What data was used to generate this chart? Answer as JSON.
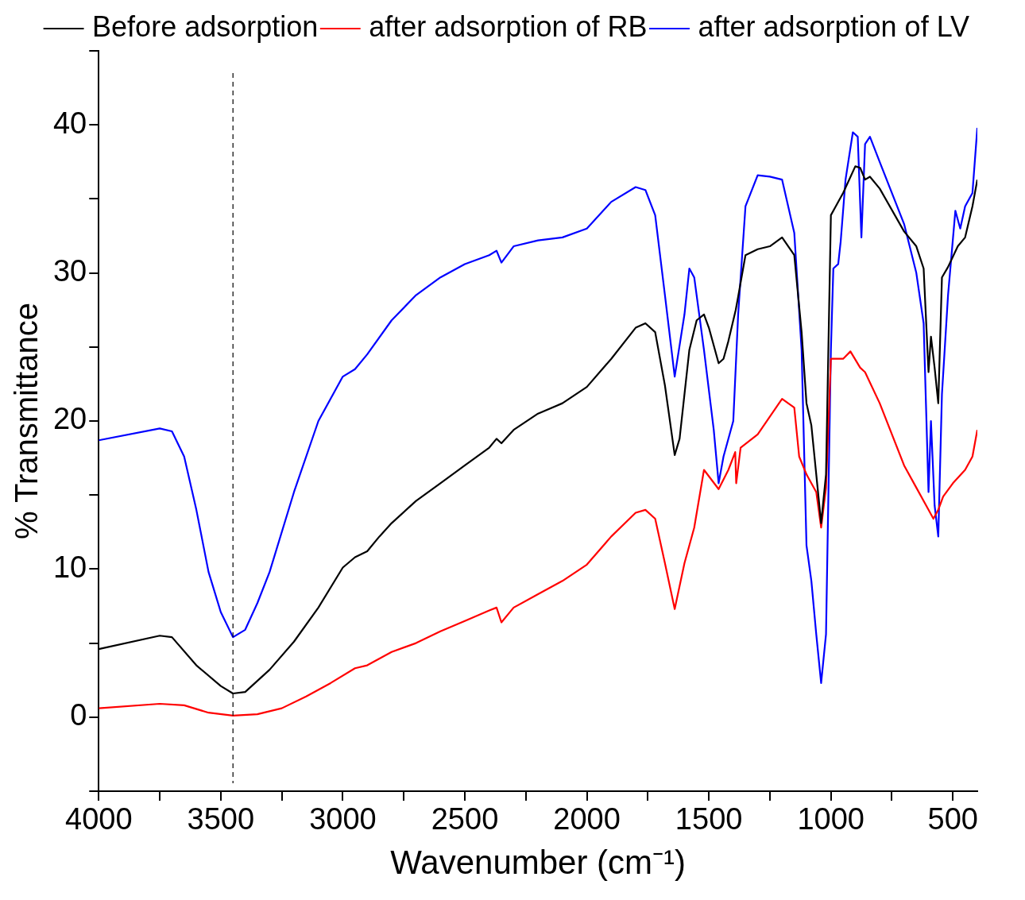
{
  "chart_data": {
    "type": "line",
    "xlabel": "Wavenumber (cm⁻¹)",
    "ylabel": "% Transmittance",
    "xlim": [
      4000,
      400
    ],
    "ylim": [
      -5,
      45
    ],
    "xticks": [
      4000,
      {
        "value": 3750,
        "label": null
      },
      3500,
      {
        "value": 3250,
        "label": null
      },
      3000,
      {
        "value": 2750,
        "label": null
      },
      2500,
      {
        "value": 2250,
        "label": null
      },
      2000,
      {
        "value": 1750,
        "label": null
      },
      1500,
      {
        "value": 1250,
        "label": null
      },
      1000,
      {
        "value": 750,
        "label": null
      },
      500
    ],
    "yticks": [
      {
        "value": -5,
        "label": null
      },
      0,
      {
        "value": 5,
        "label": null
      },
      10,
      {
        "value": 15,
        "label": null
      },
      20,
      {
        "value": 25,
        "label": null
      },
      30,
      {
        "value": 35,
        "label": null
      },
      40,
      {
        "value": 45,
        "label": null
      }
    ],
    "grid": false,
    "legend": "top right",
    "marker": "none",
    "line_style": "solid",
    "ref_lines": [
      {
        "axis": "x",
        "value": 3450,
        "color": "#000000",
        "line_style": "dashed"
      }
    ],
    "series": [
      {
        "name": "Before adsorption",
        "color": "#000000",
        "x": [
          4000,
          3750,
          3700,
          3600,
          3500,
          3450,
          3400,
          3300,
          3200,
          3100,
          3000,
          2950,
          2900,
          2850,
          2800,
          2700,
          2600,
          2500,
          2400,
          2370,
          2350,
          2300,
          2200,
          2100,
          2000,
          1900,
          1800,
          1760,
          1720,
          1680,
          1640,
          1620,
          1580,
          1550,
          1520,
          1500,
          1460,
          1440,
          1420,
          1390,
          1380,
          1350,
          1300,
          1250,
          1200,
          1150,
          1120,
          1100,
          1080,
          1060,
          1040,
          1020,
          1000,
          980,
          950,
          900,
          880,
          860,
          840,
          800,
          700,
          650,
          620,
          600,
          590,
          575,
          560,
          545,
          520,
          480,
          450,
          420,
          400
        ],
        "values": [
          4.6,
          5.5,
          5.4,
          3.5,
          2.1,
          1.6,
          1.7,
          3.2,
          5.1,
          7.4,
          10.1,
          10.8,
          11.2,
          12.2,
          13.1,
          14.6,
          15.8,
          17.0,
          18.2,
          18.8,
          18.5,
          19.4,
          20.5,
          21.2,
          22.3,
          24.2,
          26.3,
          26.6,
          26.0,
          22.4,
          17.7,
          18.8,
          24.8,
          26.8,
          27.2,
          26.3,
          23.9,
          24.2,
          25.4,
          27.5,
          28.4,
          31.2,
          31.6,
          31.8,
          32.4,
          31.2,
          26.0,
          21.2,
          19.7,
          16.4,
          13.1,
          16.4,
          33.9,
          34.5,
          35.4,
          37.2,
          37.1,
          36.3,
          36.5,
          35.7,
          32.8,
          31.8,
          30.3,
          23.3,
          25.7,
          23.6,
          21.2,
          29.7,
          30.4,
          31.8,
          32.4,
          34.5,
          36.3
        ]
      },
      {
        "name": "after adsorption of RB",
        "color": "#ff0000",
        "x": [
          4000,
          3750,
          3650,
          3550,
          3450,
          3350,
          3250,
          3150,
          3050,
          2950,
          2900,
          2800,
          2700,
          2600,
          2500,
          2400,
          2370,
          2350,
          2300,
          2200,
          2100,
          2000,
          1900,
          1800,
          1760,
          1720,
          1680,
          1640,
          1600,
          1560,
          1520,
          1460,
          1420,
          1392,
          1388,
          1370,
          1300,
          1200,
          1150,
          1130,
          1100,
          1060,
          1040,
          1020,
          1000,
          950,
          920,
          880,
          860,
          800,
          700,
          650,
          600,
          580,
          560,
          540,
          500,
          450,
          420,
          400
        ],
        "values": [
          0.6,
          0.9,
          0.8,
          0.3,
          0.1,
          0.2,
          0.6,
          1.4,
          2.3,
          3.3,
          3.5,
          4.4,
          5.0,
          5.8,
          6.5,
          7.2,
          7.4,
          6.4,
          7.4,
          8.3,
          9.2,
          10.3,
          12.2,
          13.8,
          14.0,
          13.4,
          10.4,
          7.3,
          10.4,
          12.8,
          16.7,
          15.4,
          16.7,
          17.9,
          15.8,
          18.2,
          19.1,
          21.5,
          20.9,
          17.6,
          16.4,
          15.2,
          12.8,
          15.5,
          24.2,
          24.2,
          24.7,
          23.6,
          23.3,
          21.2,
          17.0,
          15.5,
          14.0,
          13.4,
          14.0,
          14.9,
          15.8,
          16.7,
          17.6,
          19.4
        ]
      },
      {
        "name": "after adsorption of LV",
        "color": "#0000ff",
        "x": [
          4000,
          3750,
          3700,
          3650,
          3600,
          3550,
          3500,
          3450,
          3400,
          3350,
          3300,
          3200,
          3100,
          3000,
          2950,
          2900,
          2800,
          2700,
          2600,
          2500,
          2400,
          2370,
          2350,
          2300,
          2200,
          2100,
          2000,
          1900,
          1800,
          1760,
          1720,
          1680,
          1640,
          1600,
          1580,
          1560,
          1520,
          1480,
          1460,
          1440,
          1400,
          1380,
          1350,
          1300,
          1250,
          1200,
          1150,
          1120,
          1100,
          1080,
          1060,
          1040,
          1020,
          1000,
          990,
          970,
          960,
          940,
          910,
          890,
          875,
          860,
          840,
          800,
          700,
          650,
          620,
          600,
          590,
          575,
          560,
          545,
          520,
          490,
          470,
          450,
          420,
          400
        ],
        "values": [
          18.7,
          19.5,
          19.3,
          17.6,
          14.0,
          9.8,
          7.1,
          5.4,
          5.9,
          7.7,
          9.8,
          15.2,
          20.0,
          23.0,
          23.5,
          24.5,
          26.8,
          28.5,
          29.7,
          30.6,
          31.2,
          31.5,
          30.7,
          31.8,
          32.2,
          32.4,
          33.0,
          34.8,
          35.8,
          35.6,
          33.9,
          28.5,
          23.0,
          27.2,
          30.3,
          29.7,
          24.8,
          19.4,
          15.8,
          17.6,
          20.0,
          27.2,
          34.5,
          36.6,
          36.5,
          36.3,
          32.7,
          24.8,
          11.6,
          9.2,
          5.6,
          2.3,
          5.6,
          24.8,
          30.3,
          30.6,
          32.1,
          36.3,
          39.5,
          39.2,
          32.4,
          38.7,
          39.2,
          37.5,
          33.3,
          30.0,
          26.6,
          15.2,
          20.0,
          14.3,
          12.2,
          21.8,
          28.5,
          34.2,
          33.0,
          34.5,
          35.4,
          39.8
        ]
      }
    ]
  }
}
